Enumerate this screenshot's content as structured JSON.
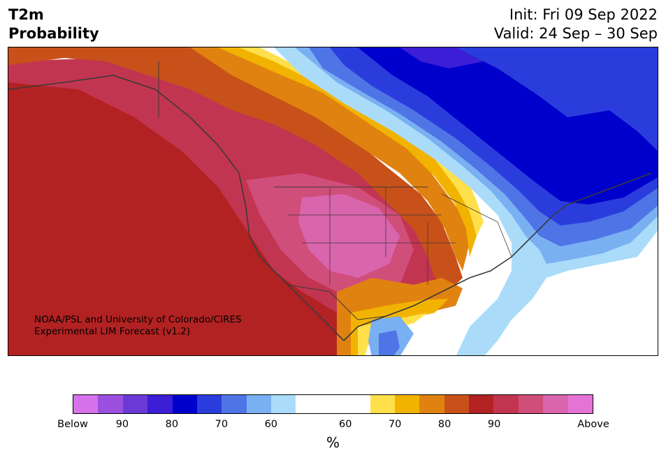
{
  "header": {
    "title_line1": "T2m",
    "title_line2": "Probability",
    "init": "Init: Fri 09 Sep 2022",
    "valid": "Valid: 24 Sep – 30 Sep"
  },
  "map": {
    "credit_line1": "NOAA/PSL and University of Colorado/CIRES",
    "credit_line2": "Experimental LIM Forecast (v1.2)"
  },
  "colorbar": {
    "colors": [
      "#d672ea",
      "#9c50e0",
      "#6b3ad6",
      "#3b1ed6",
      "#0000cd",
      "#2a3ddc",
      "#4f74e6",
      "#79b0f2",
      "#aadcfa",
      "#ffffff",
      "#ffe04b",
      "#f2b300",
      "#e08210",
      "#c8511a",
      "#b22222",
      "#c23550",
      "#d04e7a",
      "#d965ad",
      "#e573d6"
    ],
    "tick_labels": [
      "Below",
      "90",
      "80",
      "70",
      "60",
      "60",
      "70",
      "80",
      "90",
      "Above"
    ],
    "unit": "%"
  }
}
